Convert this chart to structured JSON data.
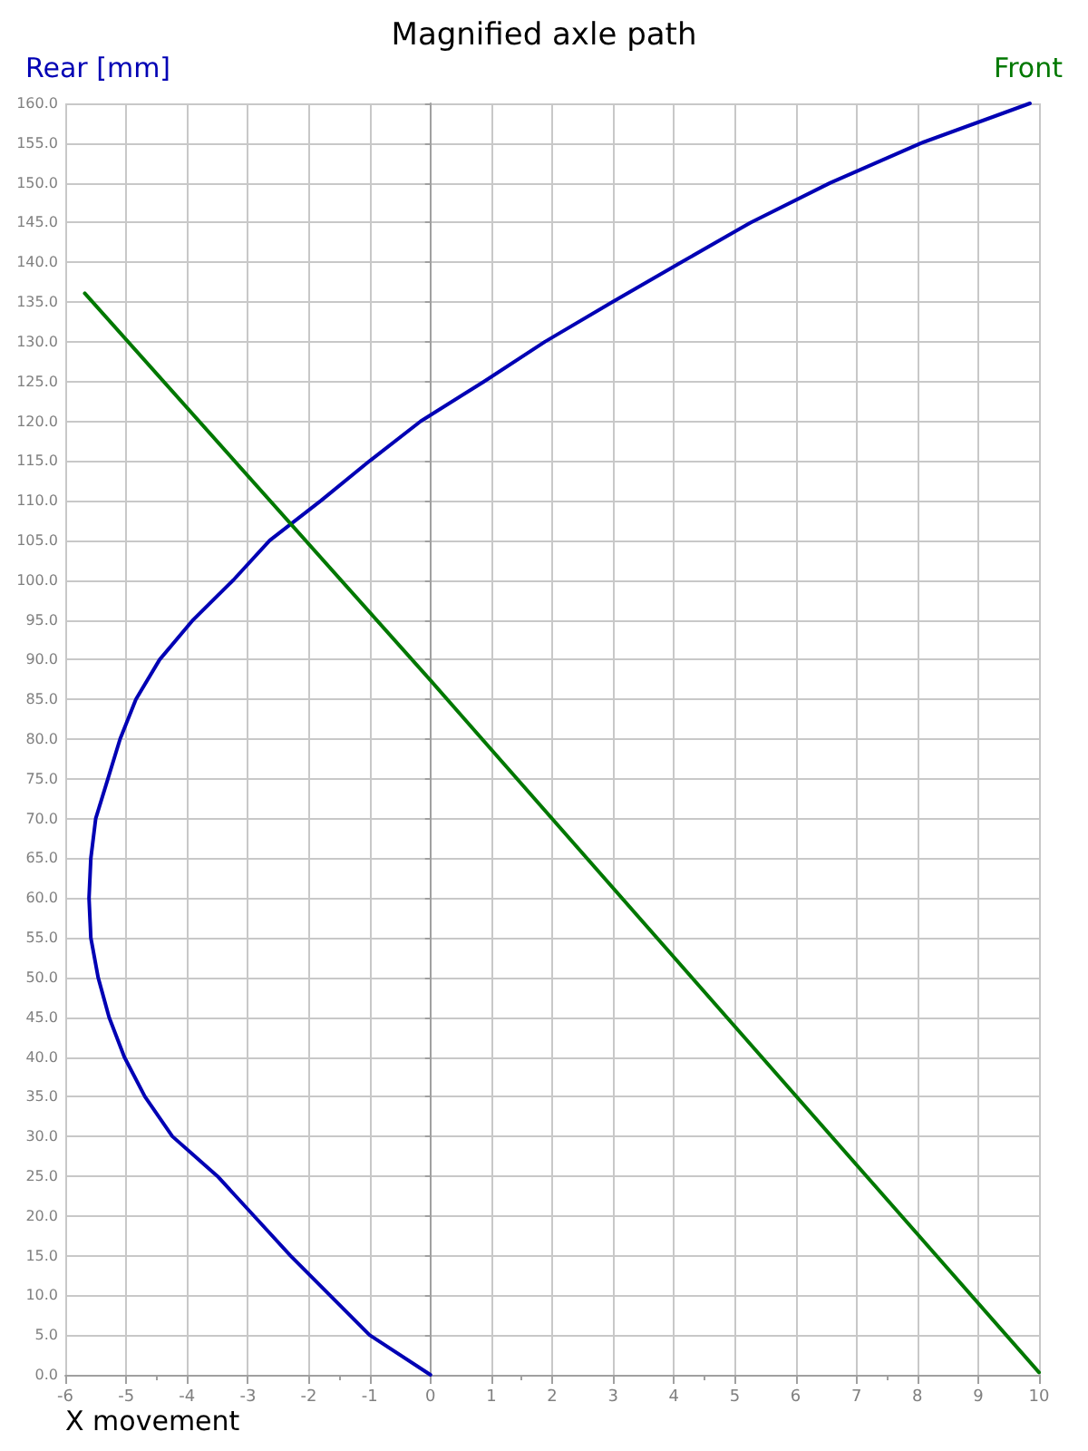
{
  "chart_data": {
    "type": "line",
    "title": "Magnified axle path",
    "xlabel": "X movement",
    "series": [
      {
        "name": "Rear [mm]",
        "color": "#0000b4",
        "x": [
          0,
          -1.0,
          -1.65,
          -2.3,
          -2.9,
          -3.5,
          -4.24,
          -4.69,
          -5.03,
          -5.28,
          -5.46,
          -5.58,
          -5.61,
          -5.58,
          -5.5,
          -5.3,
          -5.1,
          -4.84,
          -4.45,
          -3.9,
          -3.24,
          -2.64,
          -1.8,
          -1.0,
          -0.16,
          0.88,
          1.88,
          2.99,
          4.12,
          5.26,
          6.57,
          8.06,
          9.85
        ],
        "values": [
          0,
          5,
          10,
          15,
          20,
          25,
          30,
          35,
          40,
          45,
          50,
          55,
          60,
          65,
          70,
          75,
          80,
          85,
          90,
          95,
          100,
          105,
          110,
          115,
          120,
          125,
          130,
          135,
          140,
          145,
          150,
          155,
          160
        ]
      },
      {
        "name": "Front",
        "color": "#007800",
        "x": [
          -5.68,
          0,
          10
        ],
        "values": [
          136.1,
          87.4,
          0.3
        ]
      }
    ],
    "xlim": [
      -6,
      10
    ],
    "xticks": [
      -6,
      -5,
      -4,
      -3,
      -2,
      -1,
      0,
      1,
      2,
      3,
      4,
      5,
      6,
      7,
      8,
      9,
      10
    ],
    "ylim": [
      0,
      160
    ],
    "yticks": [
      {
        "value": 0,
        "label": "0.0"
      },
      {
        "value": 5,
        "label": "5.0"
      },
      {
        "value": 10,
        "label": "10.0"
      },
      {
        "value": 15,
        "label": "15.0"
      },
      {
        "value": 20,
        "label": "20.0"
      },
      {
        "value": 25,
        "label": "25.0"
      },
      {
        "value": 30,
        "label": "30.0"
      },
      {
        "value": 35,
        "label": "35.0"
      },
      {
        "value": 40,
        "label": "40.0"
      },
      {
        "value": 45,
        "label": "45.0"
      },
      {
        "value": 50,
        "label": "50.0"
      },
      {
        "value": 55,
        "label": "55.0"
      },
      {
        "value": 60,
        "label": "60.0"
      },
      {
        "value": 65,
        "label": "65.0"
      },
      {
        "value": 70,
        "label": "70.0"
      },
      {
        "value": 75,
        "label": "75.0"
      },
      {
        "value": 80,
        "label": "80.0"
      },
      {
        "value": 85,
        "label": "85.0"
      },
      {
        "value": 90,
        "label": "90.0"
      },
      {
        "value": 95,
        "label": "95.0"
      },
      {
        "value": 100,
        "label": "100.0"
      },
      {
        "value": 105,
        "label": "105.0"
      },
      {
        "value": 110,
        "label": "110.0"
      },
      {
        "value": 115,
        "label": "115.0"
      },
      {
        "value": 120,
        "label": "120.0"
      },
      {
        "value": 125,
        "label": "125.0"
      },
      {
        "value": 130,
        "label": "130.0"
      },
      {
        "value": 135,
        "label": "135.0"
      },
      {
        "value": 140,
        "label": "140.0"
      },
      {
        "value": 145,
        "label": "145.0"
      },
      {
        "value": 150,
        "label": "150.0"
      },
      {
        "value": 155,
        "label": "155.0"
      },
      {
        "value": 160,
        "label": "160.0"
      }
    ],
    "grid": true,
    "marker": "none",
    "line_style": "solid"
  }
}
